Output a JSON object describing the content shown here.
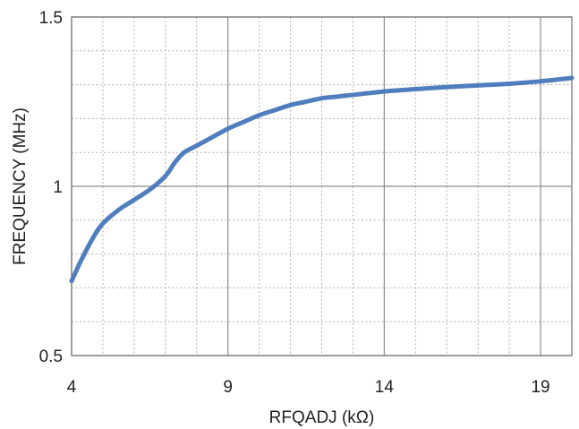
{
  "chart_data": {
    "type": "line",
    "title": "",
    "xlabel": "RFQADJ (kΩ)",
    "ylabel": "FREQUENCY (MHz)",
    "xlim": [
      4,
      20
    ],
    "ylim": [
      0.5,
      1.5
    ],
    "xticks": [
      4,
      9,
      14,
      19
    ],
    "xtick_labels": [
      "4",
      "9",
      "14",
      "19"
    ],
    "yticks": [
      0.5,
      1.0,
      1.5
    ],
    "ytick_labels": [
      "0.5",
      "1",
      "1.5"
    ],
    "x_minor_step": 1,
    "y_minor_step": 0.1,
    "grid": true,
    "line_color": "#4f7dbd",
    "series": [
      {
        "x": [
          4.0,
          4.3,
          4.7,
          5.0,
          5.5,
          6.0,
          6.5,
          7.0,
          7.3,
          7.6,
          8.0,
          8.5,
          9.0,
          9.5,
          10.0,
          10.5,
          11.0,
          11.5,
          12.0,
          12.5,
          13.0,
          14.0,
          15.0,
          16.0,
          17.0,
          18.0,
          19.0,
          20.0
        ],
        "y": [
          0.72,
          0.78,
          0.85,
          0.89,
          0.93,
          0.96,
          0.99,
          1.03,
          1.07,
          1.1,
          1.12,
          1.145,
          1.17,
          1.19,
          1.21,
          1.225,
          1.24,
          1.25,
          1.26,
          1.265,
          1.27,
          1.28,
          1.287,
          1.293,
          1.298,
          1.303,
          1.31,
          1.32
        ]
      }
    ]
  }
}
